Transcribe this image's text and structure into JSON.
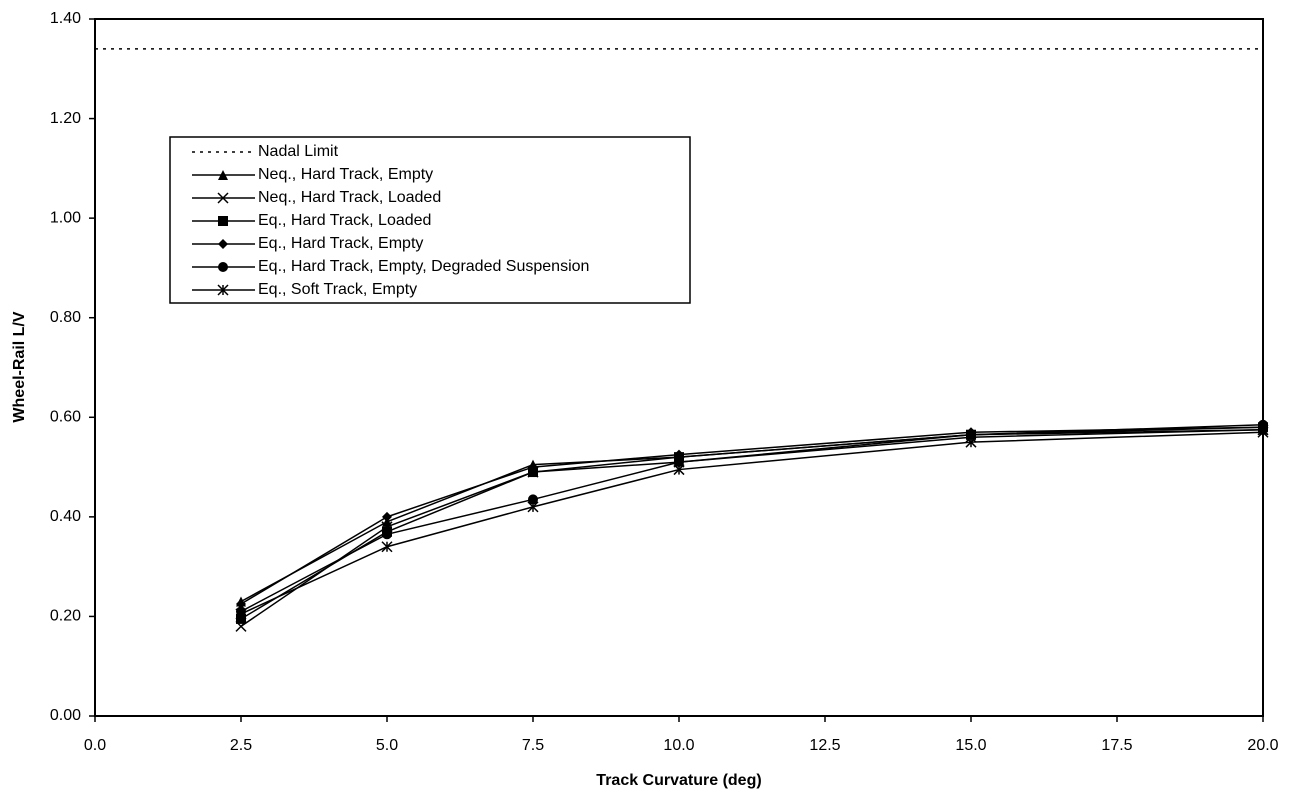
{
  "chart_data": {
    "type": "line",
    "x_label": "Track Curvature (deg)",
    "y_label": "Wheel-Rail L/V",
    "xlim": [
      0,
      20
    ],
    "ylim": [
      0,
      1.4
    ],
    "xticks": [
      {
        "value": 0,
        "label": "0.0"
      },
      {
        "value": 2.5,
        "label": "2.5"
      },
      {
        "value": 5,
        "label": "5.0"
      },
      {
        "value": 7.5,
        "label": "7.5"
      },
      {
        "value": 10,
        "label": "10.0"
      },
      {
        "value": 12.5,
        "label": "12.5"
      },
      {
        "value": 15,
        "label": "15.0"
      },
      {
        "value": 17.5,
        "label": "17.5"
      },
      {
        "value": 20,
        "label": "20.0"
      }
    ],
    "yticks": [
      {
        "value": 0,
        "label": "0.00"
      },
      {
        "value": 0.2,
        "label": "0.20"
      },
      {
        "value": 0.4,
        "label": "0.40"
      },
      {
        "value": 0.6,
        "label": "0.60"
      },
      {
        "value": 0.8,
        "label": "0.80"
      },
      {
        "value": 1,
        "label": "1.00"
      },
      {
        "value": 1.2,
        "label": "1.20"
      },
      {
        "value": 1.4,
        "label": "1.40"
      }
    ],
    "series": [
      {
        "name": "Nadal Limit",
        "color": "#000000",
        "line_style": "dotted",
        "x": [
          0,
          20
        ],
        "values": [
          1.34,
          1.34
        ]
      },
      {
        "name": "Neq., Hard Track, Empty",
        "color": "#000000",
        "marker": "triangle",
        "x": [
          2.5,
          5,
          7.5,
          10,
          15,
          20
        ],
        "values": [
          0.23,
          0.39,
          0.505,
          0.52,
          0.565,
          0.575
        ]
      },
      {
        "name": "Neq., Hard Track, Loaded",
        "color": "#000000",
        "marker": "x",
        "x": [
          2.5,
          5,
          7.5,
          10,
          15,
          20
        ],
        "values": [
          0.18,
          0.38,
          0.49,
          0.51,
          0.56,
          0.575
        ]
      },
      {
        "name": "Eq., Hard Track, Loaded",
        "color": "#000000",
        "marker": "square",
        "x": [
          2.5,
          5,
          7.5,
          10,
          15,
          20
        ],
        "values": [
          0.195,
          0.37,
          0.49,
          0.52,
          0.565,
          0.58
        ]
      },
      {
        "name": "Eq., Hard Track, Empty",
        "color": "#000000",
        "marker": "diamond",
        "x": [
          2.5,
          5,
          7.5,
          10,
          15,
          20
        ],
        "values": [
          0.225,
          0.4,
          0.5,
          0.525,
          0.57,
          0.58
        ]
      },
      {
        "name": "Eq., Hard Track, Empty, Degraded Suspension",
        "color": "#000000",
        "marker": "circle",
        "x": [
          2.5,
          5,
          7.5,
          10,
          15,
          20
        ],
        "values": [
          0.21,
          0.365,
          0.435,
          0.51,
          0.565,
          0.585
        ]
      },
      {
        "name": "Eq., Soft Track, Empty",
        "color": "#000000",
        "marker": "asterisk",
        "x": [
          2.5,
          5,
          7.5,
          10,
          15,
          20
        ],
        "values": [
          0.205,
          0.34,
          0.42,
          0.495,
          0.55,
          0.57
        ]
      }
    ]
  }
}
